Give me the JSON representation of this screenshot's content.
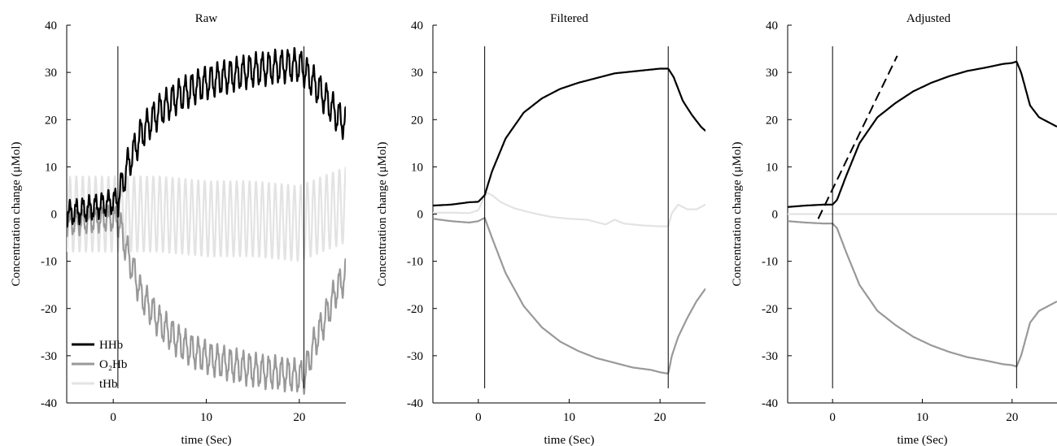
{
  "figure": {
    "ylabel": "Concentration change (μMol)",
    "xlabel": "time (Sec)"
  },
  "legend": {
    "placement": "bottom-left of first panel",
    "entries": [
      {
        "label": "HHb",
        "color": "#000000"
      },
      {
        "label": "O₂Hb",
        "color": "#999999"
      },
      {
        "label": "tHb",
        "color": "#e3e3e3"
      }
    ]
  },
  "chart_data": [
    {
      "type": "line",
      "title": "Raw",
      "xlabel": "time (Sec)",
      "ylabel": "Concentration change (μMol)",
      "xlim": [
        -5,
        25
      ],
      "ylim": [
        -40,
        40
      ],
      "xticks": [
        0,
        10,
        20
      ],
      "yticks": [
        40,
        30,
        20,
        10,
        0,
        -10,
        -20,
        -30,
        -40
      ],
      "grid": false,
      "events": [
        0.5,
        20.5
      ],
      "series": [
        {
          "name": "HHb",
          "color": "#000000",
          "osc_amp": 3,
          "x": [
            -5,
            -3,
            -1,
            0.5,
            1.5,
            3,
            5,
            7,
            9,
            11,
            13,
            15,
            17,
            19,
            20,
            20.5,
            21.5,
            23,
            24,
            25
          ],
          "y": [
            0,
            1,
            2,
            3,
            10,
            17,
            22,
            25,
            27,
            28.5,
            29.5,
            30.5,
            31,
            31.5,
            31.5,
            30.5,
            28,
            24,
            21,
            19
          ]
        },
        {
          "name": "O₂Hb",
          "color": "#999999",
          "osc_amp": 3,
          "x": [
            -5,
            -3,
            -1,
            0.5,
            1.5,
            3,
            5,
            7,
            9,
            11,
            13,
            15,
            17,
            19,
            20.5,
            21.5,
            23,
            24,
            25
          ],
          "y": [
            -2,
            -1.5,
            -1,
            -1,
            -8,
            -17,
            -23,
            -27,
            -29.5,
            -31,
            -32,
            -33,
            -33.5,
            -34,
            -34.5,
            -28,
            -21,
            -16,
            -13
          ]
        },
        {
          "name": "tHb",
          "color": "#e3e3e3",
          "osc_amp": 8,
          "x": [
            -5,
            0,
            5,
            10,
            15,
            20,
            25
          ],
          "y": [
            0,
            0,
            0,
            -1,
            -1,
            -2,
            2
          ]
        }
      ]
    },
    {
      "type": "line",
      "title": "Filtered",
      "xlabel": "time (Sec)",
      "ylabel": "Concentration change (μMol)",
      "xlim": [
        -5,
        25
      ],
      "ylim": [
        -40,
        40
      ],
      "xticks": [
        0,
        10,
        20
      ],
      "yticks": [
        40,
        30,
        20,
        10,
        0,
        -10,
        -20,
        -30,
        -40
      ],
      "grid": false,
      "events": [
        0.7,
        20.9
      ],
      "series": [
        {
          "name": "HHb",
          "color": "#000000",
          "x": [
            -5,
            -3,
            -1,
            0,
            0.7,
            1.5,
            3,
            5,
            7,
            9,
            11,
            13,
            15,
            17,
            19,
            20,
            20.9,
            21.5,
            22.5,
            23.5,
            24.5,
            25
          ],
          "y": [
            1.8,
            2,
            2.5,
            2.6,
            4,
            9,
            16,
            21.5,
            24.5,
            26.5,
            27.8,
            28.8,
            29.8,
            30.2,
            30.6,
            30.8,
            30.8,
            29,
            24,
            21,
            18.5,
            17.6
          ]
        },
        {
          "name": "O₂Hb",
          "color": "#999999",
          "x": [
            -5,
            -3,
            -1,
            0,
            0.7,
            1.5,
            3,
            5,
            7,
            9,
            11,
            13,
            15,
            17,
            19,
            20,
            20.9,
            21.3,
            22,
            23,
            24,
            25
          ],
          "y": [
            -1,
            -1.5,
            -1.8,
            -1.5,
            -0.8,
            -5,
            -12.5,
            -19.5,
            -24,
            -27,
            -29,
            -30.5,
            -31.5,
            -32.5,
            -33,
            -33.5,
            -33.8,
            -30,
            -26,
            -22,
            -18.5,
            -15.8
          ]
        },
        {
          "name": "tHb",
          "color": "#e3e3e3",
          "x": [
            -5,
            -3,
            -1,
            0,
            0.5,
            1,
            1.5,
            2.5,
            4,
            6,
            8,
            10,
            12,
            14,
            15,
            16,
            18,
            20,
            20.9,
            21.3,
            22,
            23,
            24,
            25
          ],
          "y": [
            0.3,
            0.3,
            0.2,
            0.8,
            3,
            4.5,
            4,
            2.5,
            1.2,
            0.2,
            -0.6,
            -1,
            -1.2,
            -2.2,
            -1.2,
            -2,
            -2.4,
            -2.6,
            -2.6,
            0.2,
            2,
            1,
            1,
            2
          ]
        }
      ]
    },
    {
      "type": "line",
      "title": "Adjusted",
      "xlabel": "time (Sec)",
      "ylabel": "Concentration change (μMol)",
      "xlim": [
        -5,
        25
      ],
      "ylim": [
        -40,
        40
      ],
      "xticks": [
        0,
        10,
        20
      ],
      "yticks": [
        40,
        30,
        20,
        10,
        0,
        -10,
        -20,
        -30,
        -40
      ],
      "grid": false,
      "events": [
        0,
        20.5
      ],
      "series": [
        {
          "name": "HHb",
          "color": "#000000",
          "x": [
            -5,
            -3,
            -1,
            0,
            0.5,
            1.5,
            3,
            5,
            7,
            9,
            11,
            13,
            15,
            17,
            19,
            20,
            20.5,
            21,
            22,
            23,
            24,
            25
          ],
          "y": [
            1.5,
            1.8,
            2,
            2,
            3,
            8,
            15,
            20.5,
            23.5,
            26,
            27.8,
            29.2,
            30.3,
            31,
            31.8,
            32,
            32.3,
            30,
            23,
            20.5,
            19.5,
            18.5
          ]
        },
        {
          "name": "O₂Hb",
          "color": "#999999",
          "x": [
            -5,
            -3,
            -1,
            0,
            0.5,
            1.5,
            3,
            5,
            7,
            9,
            11,
            13,
            15,
            17,
            19,
            20,
            20.5,
            21,
            22,
            23,
            24,
            25
          ],
          "y": [
            -1.5,
            -1.8,
            -2,
            -2,
            -3,
            -8,
            -15,
            -20.5,
            -23.5,
            -26,
            -27.8,
            -29.2,
            -30.3,
            -31,
            -31.8,
            -32,
            -32.3,
            -30,
            -23,
            -20.5,
            -19.5,
            -18.5
          ]
        },
        {
          "name": "tHb",
          "color": "#e3e3e3",
          "x": [
            -5,
            25
          ],
          "y": [
            0,
            0
          ]
        },
        {
          "color": "#000000",
          "dashed": true,
          "x": [
            -1.6,
            7.2
          ],
          "y": [
            -1,
            33.5
          ]
        }
      ]
    }
  ]
}
